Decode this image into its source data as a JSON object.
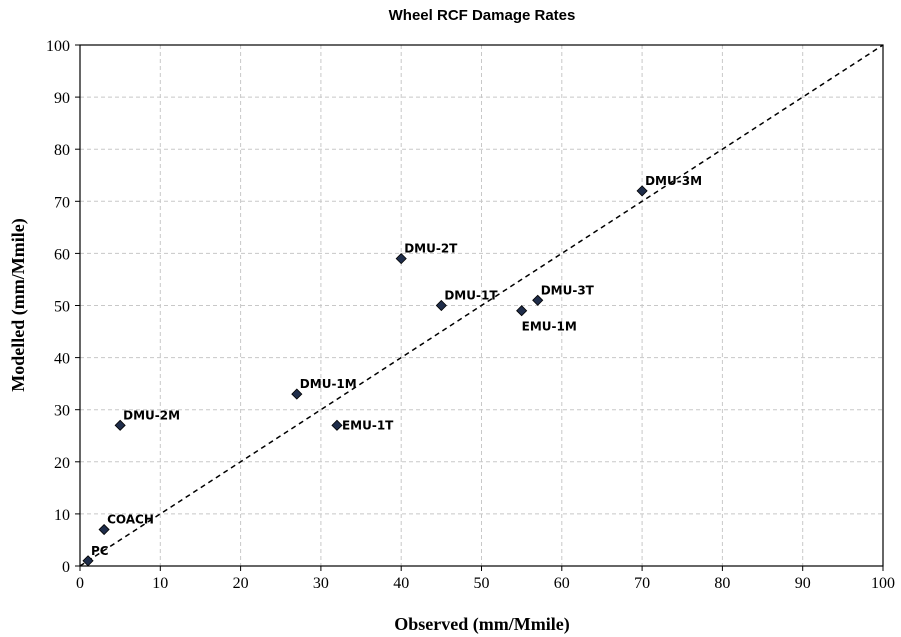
{
  "chart_data": {
    "type": "scatter",
    "title": "Wheel RCF Damage Rates",
    "x_label": "Observed (mm/Mmile)",
    "y_label": "Modelled (mm/Mmile)",
    "x": [
      1,
      3,
      5,
      27,
      32,
      40,
      45,
      55,
      57,
      70
    ],
    "values": [
      1,
      7,
      27,
      33,
      27,
      59,
      50,
      49,
      51,
      72
    ],
    "labels": [
      "PC",
      "COACH",
      "DMU-2M",
      "DMU-1M",
      "EMU-1T",
      "DMU-2T",
      "DMU-1T",
      "EMU-1M",
      "DMU-3T",
      "DMU-3M"
    ],
    "color": "#1f2d4a",
    "xlim": [
      0,
      100
    ],
    "ylim": [
      0,
      100
    ],
    "xticks": [
      0,
      10,
      20,
      30,
      40,
      50,
      60,
      70,
      80,
      90,
      100
    ],
    "yticks": [
      0,
      10,
      20,
      30,
      40,
      50,
      60,
      70,
      80,
      90,
      100
    ],
    "grid": true,
    "identity_line": true
  }
}
